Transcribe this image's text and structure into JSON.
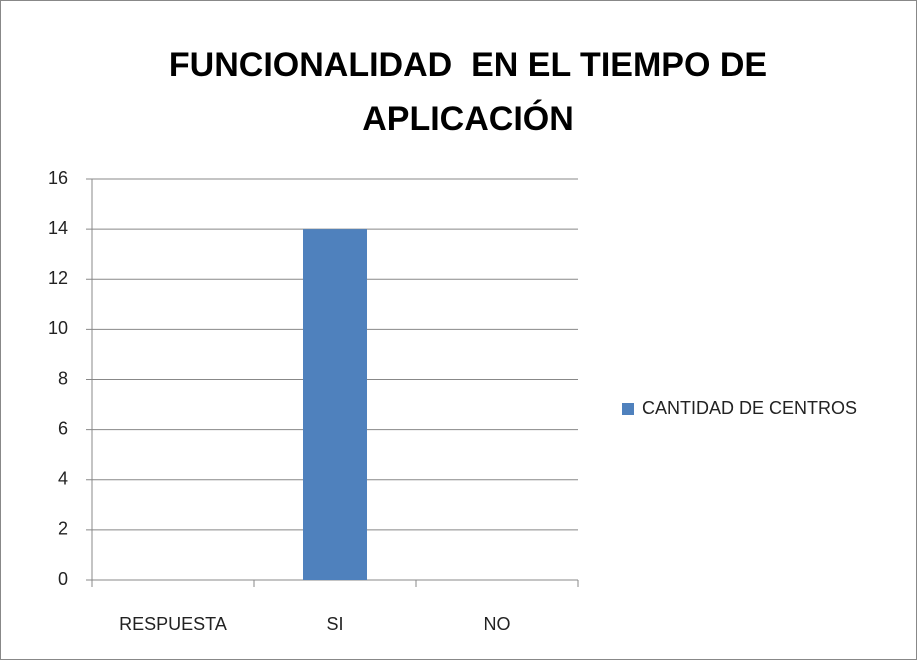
{
  "chart_data": {
    "type": "bar",
    "title": "FUNCIONALIDAD  EN EL TIEMPO DE APLICACIÓN",
    "categories": [
      "RESPUESTA",
      "SI",
      "NO"
    ],
    "series": [
      {
        "name": "CANTIDAD DE CENTROS",
        "color": "#4f81bd",
        "values": [
          null,
          14,
          null
        ]
      }
    ],
    "ylim": [
      0,
      16
    ],
    "yticks": [
      0,
      2,
      4,
      6,
      8,
      10,
      12,
      14,
      16
    ],
    "grid": true,
    "legend": "right"
  }
}
